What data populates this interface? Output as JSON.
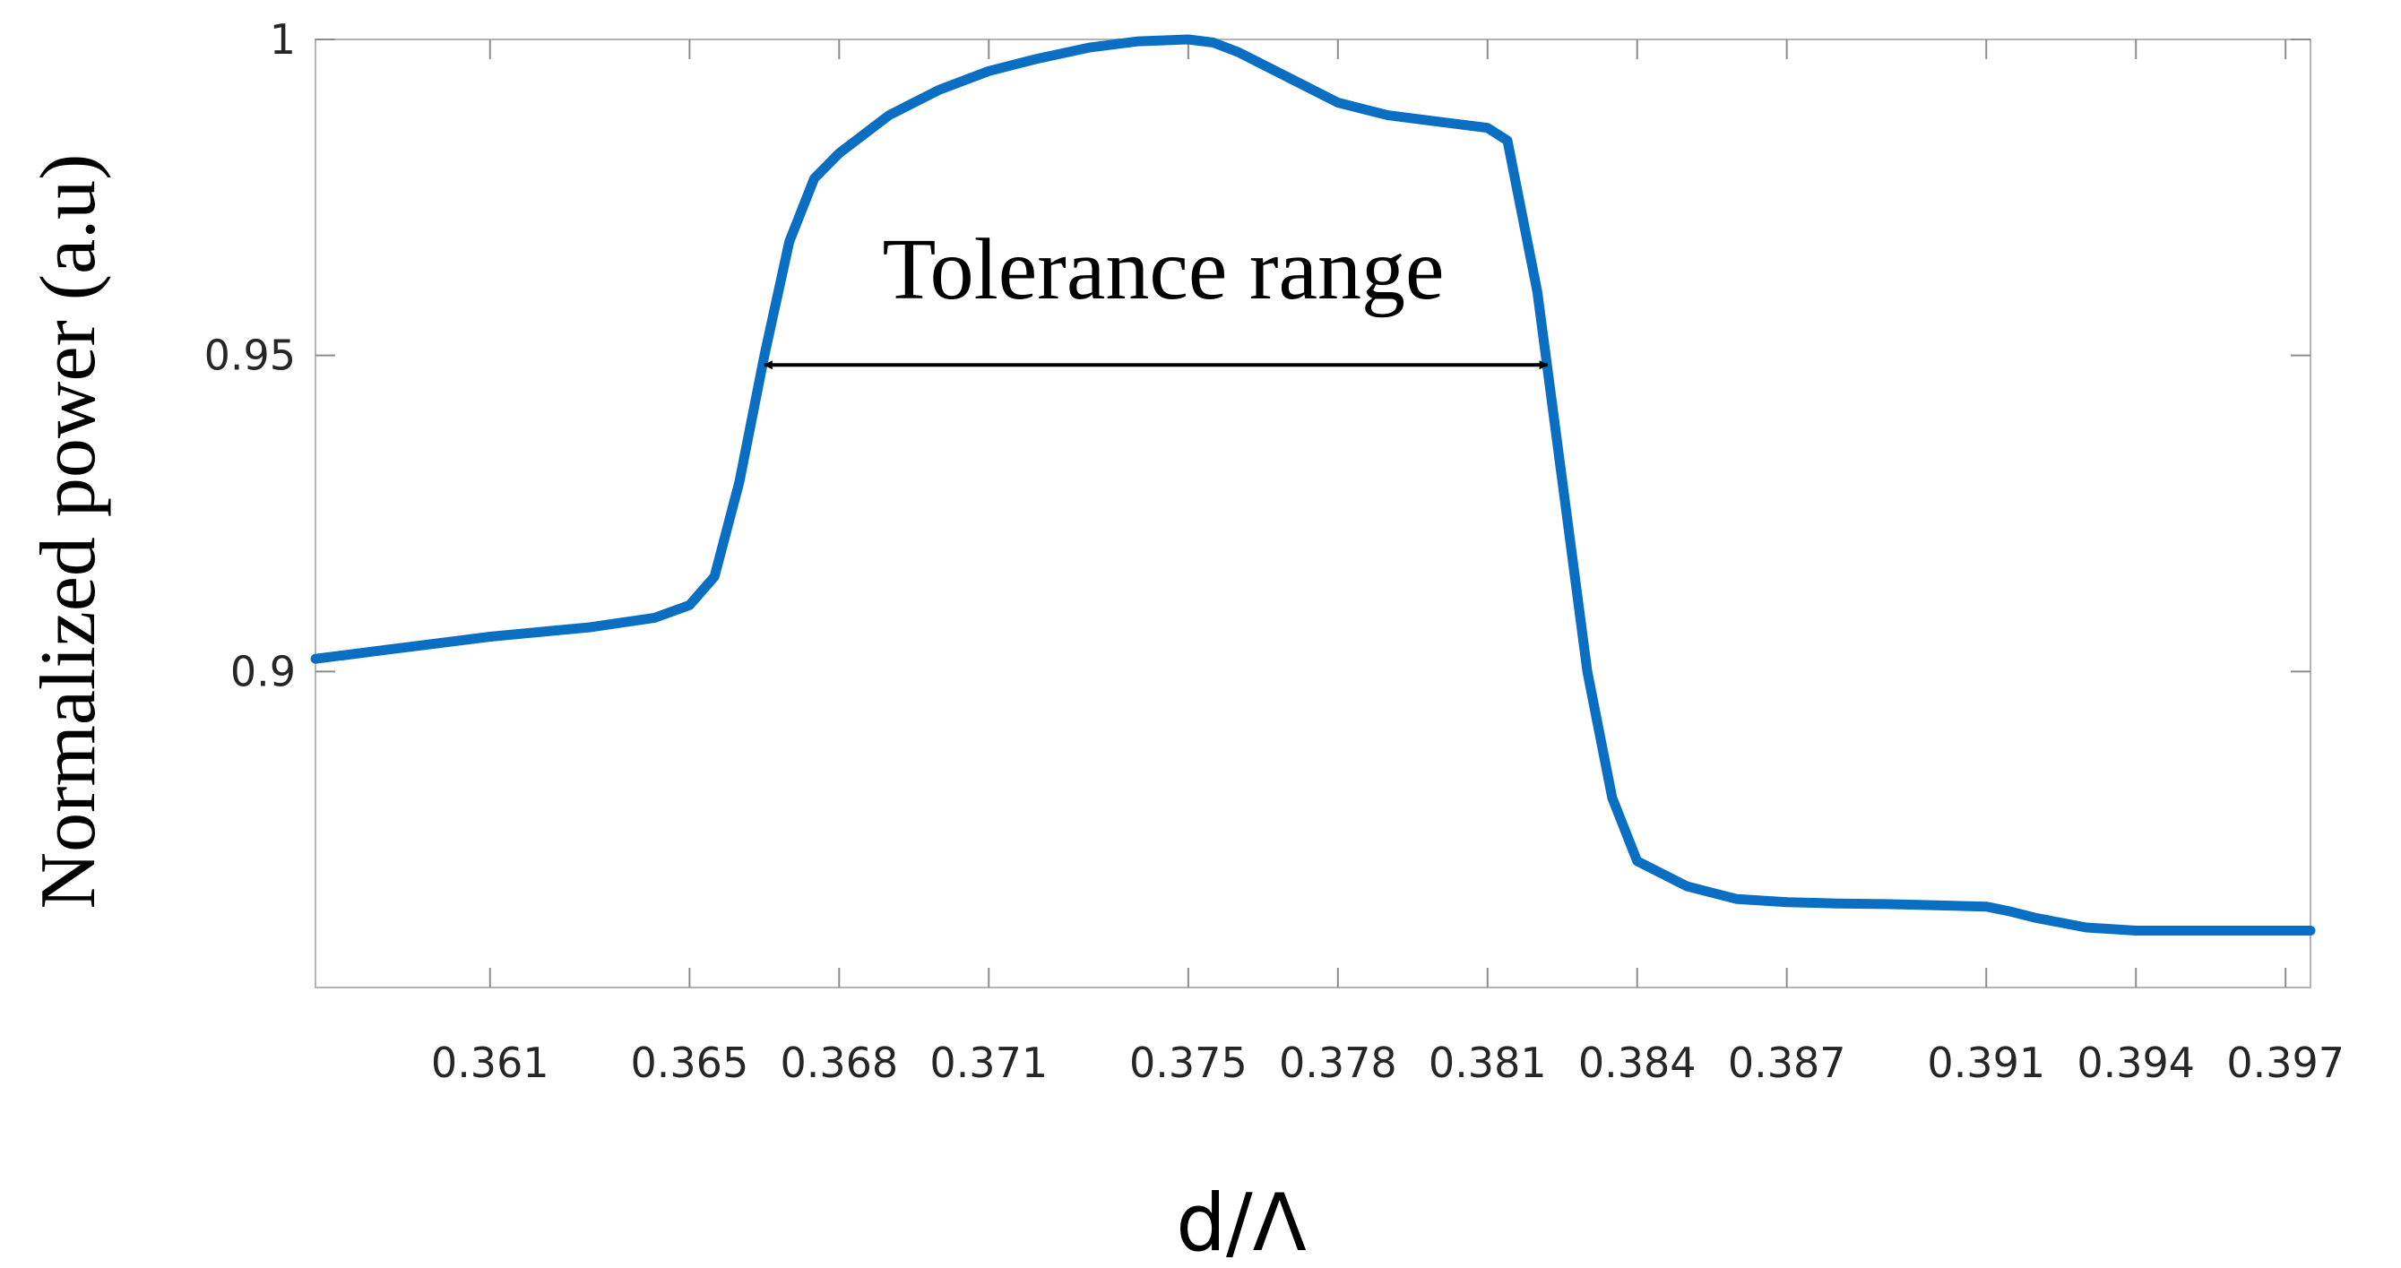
{
  "chart_data": {
    "type": "line",
    "title": "",
    "xlabel": "d/Λ",
    "ylabel": "Normalized power (a.u)",
    "xlim": [
      0.3575,
      0.3975
    ],
    "ylim": [
      0.85,
      1.0
    ],
    "grid": false,
    "x_ticks": [
      {
        "value": 0.361,
        "label": "0.361"
      },
      {
        "value": 0.365,
        "label": "0.365"
      },
      {
        "value": 0.368,
        "label": "0.368"
      },
      {
        "value": 0.371,
        "label": "0.371"
      },
      {
        "value": 0.375,
        "label": "0.375"
      },
      {
        "value": 0.378,
        "label": "0.378"
      },
      {
        "value": 0.381,
        "label": "0.381"
      },
      {
        "value": 0.384,
        "label": "0.384"
      },
      {
        "value": 0.387,
        "label": "0.387"
      },
      {
        "value": 0.391,
        "label": "0.391"
      },
      {
        "value": 0.394,
        "label": "0.394"
      },
      {
        "value": 0.397,
        "label": "0.397"
      }
    ],
    "y_ticks": [
      {
        "value": 0.9,
        "label": "0.9"
      },
      {
        "value": 0.95,
        "label": "0.95"
      },
      {
        "value": 1.0,
        "label": "1"
      }
    ],
    "series": [
      {
        "color": "#0a6fc2",
        "x": [
          0.3575,
          0.359,
          0.361,
          0.363,
          0.3643,
          0.365,
          0.3655,
          0.366,
          0.3665,
          0.367,
          0.3675,
          0.368,
          0.369,
          0.37,
          0.371,
          0.372,
          0.373,
          0.374,
          0.375,
          0.3755,
          0.376,
          0.377,
          0.378,
          0.379,
          0.38,
          0.381,
          0.3814,
          0.382,
          0.3825,
          0.383,
          0.3835,
          0.384,
          0.385,
          0.386,
          0.387,
          0.388,
          0.389,
          0.39,
          0.391,
          0.3915,
          0.392,
          0.393,
          0.394,
          0.395,
          0.396,
          0.3975
        ],
        "y": [
          0.902,
          0.9035,
          0.9055,
          0.907,
          0.9085,
          0.9105,
          0.915,
          0.93,
          0.95,
          0.968,
          0.978,
          0.982,
          0.988,
          0.992,
          0.995,
          0.997,
          0.9987,
          0.9997,
          1.0,
          0.9995,
          0.998,
          0.994,
          0.99,
          0.988,
          0.987,
          0.986,
          0.984,
          0.96,
          0.93,
          0.9,
          0.88,
          0.87,
          0.866,
          0.864,
          0.8635,
          0.8633,
          0.8632,
          0.863,
          0.8628,
          0.862,
          0.861,
          0.8595,
          0.859,
          0.859,
          0.859,
          0.859
        ]
      }
    ],
    "annotations": [
      {
        "text": "Tolerance range",
        "x": 0.3745,
        "y": 0.959
      },
      {
        "type": "double-arrow",
        "x_start": 0.3665,
        "x_end": 0.3822,
        "y": 0.9485
      }
    ]
  }
}
